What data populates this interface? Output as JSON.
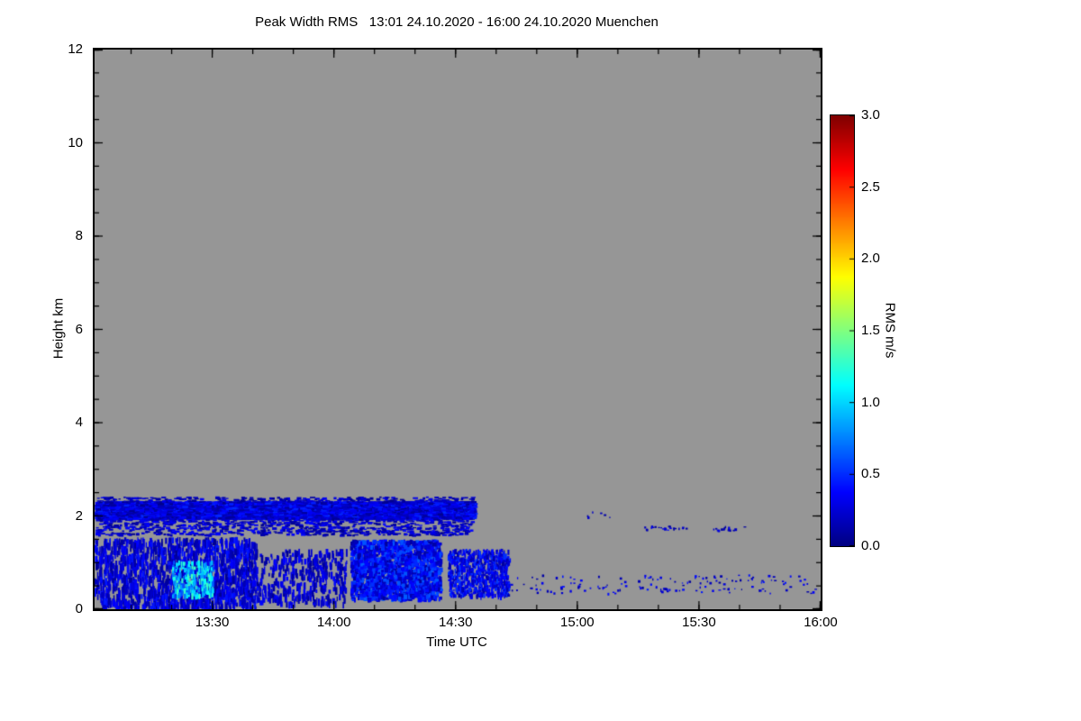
{
  "page": {
    "background": "#ffffff"
  },
  "chart_data": {
    "type": "heatmap",
    "title": "Peak Width RMS   13:01 24.10.2020 - 16:00 24.10.2020 Muenchen",
    "xlabel": "Time UTC",
    "ylabel": "Height km",
    "background_color": "#969696",
    "frame_color": "#000000",
    "seed": 42,
    "x_axis": {
      "start_label": "13:01",
      "end_label": "16:00",
      "start_abs_min": 781,
      "duration_min": 179,
      "minor_step_min": 10,
      "ticks": [
        {
          "label": "13:30",
          "t": 29
        },
        {
          "label": "14:00",
          "t": 59
        },
        {
          "label": "14:30",
          "t": 89
        },
        {
          "label": "15:00",
          "t": 119
        },
        {
          "label": "15:30",
          "t": 149
        },
        {
          "label": "16:00",
          "t": 179
        }
      ]
    },
    "y_axis": {
      "min": 0,
      "max": 12,
      "minor_step": 0.5,
      "ticks": [
        {
          "label": "0",
          "v": 0
        },
        {
          "label": "2",
          "v": 2
        },
        {
          "label": "4",
          "v": 4
        },
        {
          "label": "6",
          "v": 6
        },
        {
          "label": "8",
          "v": 8
        },
        {
          "label": "10",
          "v": 10
        },
        {
          "label": "12",
          "v": 12
        }
      ]
    },
    "colorbar": {
      "label": "RMS m/s",
      "vmin": 0,
      "vmax": 3,
      "colormap": "jet",
      "ticks": [
        {
          "label": "0.0",
          "v": 0.0
        },
        {
          "label": "0.5",
          "v": 0.5
        },
        {
          "label": "1.0",
          "v": 1.0
        },
        {
          "label": "1.5",
          "v": 1.5
        },
        {
          "label": "2.0",
          "v": 2.0
        },
        {
          "label": "2.5",
          "v": 2.5
        },
        {
          "label": "3.0",
          "v": 3.0
        }
      ]
    },
    "value_unit": "m/s",
    "features": [
      {
        "name": "cloud-band-core",
        "t0": 0,
        "t1": 93,
        "h0": 1.95,
        "h1": 2.32,
        "n": 5200,
        "v0": 0.04,
        "v1": 0.5,
        "w": 5,
        "hp": 2
      },
      {
        "name": "cloud-band-fringe",
        "t0": 0,
        "t1": 93,
        "h0": 1.6,
        "h1": 2.0,
        "n": 900,
        "v0": 0.04,
        "v1": 0.4,
        "w": 4,
        "hp": 2
      },
      {
        "name": "cloud-band-top",
        "t0": 0,
        "t1": 93,
        "h0": 2.3,
        "h1": 2.42,
        "n": 250,
        "v0": 0.04,
        "v1": 0.35,
        "w": 4,
        "hp": 2
      },
      {
        "name": "low-wisps-early",
        "t0": 0,
        "t1": 40,
        "h0": 0.05,
        "h1": 1.55,
        "n": 1600,
        "v0": 0.05,
        "v1": 0.45,
        "w": 2,
        "hp": 7
      },
      {
        "name": "cyan-patch",
        "t0": 19,
        "t1": 29,
        "h0": 0.3,
        "h1": 1.05,
        "n": 260,
        "v0": 0.55,
        "v1": 1.35,
        "w": 2,
        "hp": 5
      },
      {
        "name": "low-wisps-mid",
        "t0": 40,
        "t1": 62,
        "h0": 0.15,
        "h1": 1.3,
        "n": 420,
        "v0": 0.05,
        "v1": 0.4,
        "w": 2,
        "hp": 6
      },
      {
        "name": "low-cluster-second",
        "t0": 63,
        "t1": 85,
        "h0": 0.25,
        "h1": 1.5,
        "n": 1700,
        "v0": 0.08,
        "v1": 0.65,
        "w": 3,
        "hp": 4
      },
      {
        "name": "post-band-cluster",
        "t0": 87,
        "t1": 102,
        "h0": 0.3,
        "h1": 1.3,
        "n": 750,
        "v0": 0.08,
        "v1": 0.55,
        "w": 2,
        "hp": 4
      },
      {
        "name": "sparse-dots-late",
        "t0": 100,
        "t1": 178,
        "h0": 0.35,
        "h1": 0.75,
        "n": 150,
        "v0": 0.08,
        "v1": 0.45,
        "w": 2,
        "hp": 2
      },
      {
        "name": "dotted-line-a",
        "t0": 135,
        "t1": 147,
        "h0": 1.7,
        "h1": 1.8,
        "n": 26,
        "v0": 0.08,
        "v1": 0.35,
        "w": 2,
        "hp": 2
      },
      {
        "name": "dotted-line-b",
        "t0": 152,
        "t1": 161,
        "h0": 1.7,
        "h1": 1.8,
        "n": 16,
        "v0": 0.08,
        "v1": 0.35,
        "w": 2,
        "hp": 2
      },
      {
        "name": "stray-dots-high",
        "t0": 121,
        "t1": 127,
        "h0": 1.95,
        "h1": 2.1,
        "n": 6,
        "v0": 0.1,
        "v1": 0.3,
        "w": 2,
        "hp": 2
      }
    ]
  }
}
